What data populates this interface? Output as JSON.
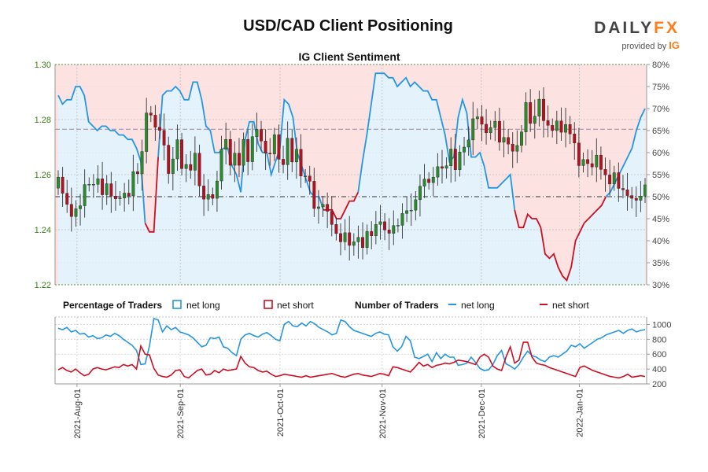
{
  "header": {
    "title": "USD/CAD Client Positioning",
    "subtitle": "IG Client Sentiment",
    "logo_brand_a": "DAILY",
    "logo_brand_b": "FX",
    "logo_provided": "provided by",
    "logo_ig": "IG"
  },
  "legend": {
    "pct_title": "Percentage of Traders",
    "pct_long": "net long",
    "pct_short": "net short",
    "num_title": "Number of Traders",
    "num_long": "net long",
    "num_short": "net short"
  },
  "colors": {
    "long_line": "#2596e0",
    "short_line": "#cc0f22",
    "long_fill": "#e4f2fb",
    "short_fill": "#fde2e2",
    "candle_up": "#2b8a2b",
    "candle_down": "#b8101f",
    "price_axis": "#3c7d16"
  },
  "chart_data": [
    {
      "type": "candlestick",
      "name": "price",
      "x_ticks": [
        "2021-Aug-01",
        "2021-Sep-01",
        "2021-Oct-01",
        "2021-Nov-01",
        "2021-Dec-01",
        "2022-Jan-01"
      ],
      "y_left_ticks": [
        "1.22",
        "1.24",
        "1.26",
        "1.28",
        "1.30"
      ],
      "y_left_range": [
        1.22,
        1.3
      ],
      "y_right_ticks": [
        "30%",
        "35%",
        "40%",
        "45%",
        "50%",
        "55%",
        "60%",
        "65%",
        "70%",
        "75%",
        "80%"
      ],
      "y_right_range": [
        30,
        80
      ],
      "reference_lines": {
        "pct_50": 50,
        "price_level": 1.2765
      },
      "close": [
        1.2591,
        1.2532,
        1.2492,
        1.2448,
        1.2476,
        1.2487,
        1.2564,
        1.2565,
        1.2565,
        1.2585,
        1.2527,
        1.2567,
        1.2522,
        1.2512,
        1.2515,
        1.2533,
        1.2523,
        1.2611,
        1.2603,
        1.2684,
        1.2824,
        1.2816,
        1.2772,
        1.2761,
        1.2707,
        1.2604,
        1.2657,
        1.2727,
        1.2622,
        1.2637,
        1.2616,
        1.2678,
        1.2559,
        1.2511,
        1.2528,
        1.2514,
        1.2577,
        1.2692,
        1.2728,
        1.2634,
        1.2678,
        1.2634,
        1.2728,
        1.2647,
        1.2738,
        1.2764,
        1.2722,
        1.2678,
        1.2675,
        1.2745,
        1.2656,
        1.2636,
        1.2732,
        1.2646,
        1.2692,
        1.2595,
        1.2595,
        1.2576,
        1.2477,
        1.2483,
        1.2492,
        1.2467,
        1.2419,
        1.2386,
        1.2356,
        1.2389,
        1.2343,
        1.2356,
        1.2372,
        1.2335,
        1.2394,
        1.2378,
        1.2419,
        1.2429,
        1.2399,
        1.2387,
        1.2415,
        1.2416,
        1.2459,
        1.2469,
        1.2471,
        1.2509,
        1.2558,
        1.2584,
        1.2571,
        1.2591,
        1.2629,
        1.2623,
        1.2632,
        1.2693,
        1.2618,
        1.2682,
        1.27,
        1.2726,
        1.2803,
        1.281,
        1.2783,
        1.2752,
        1.2771,
        1.2794,
        1.2718,
        1.2735,
        1.2711,
        1.2685,
        1.2706,
        1.2755,
        1.2862,
        1.2786,
        1.2812,
        1.2874,
        1.2796,
        1.2779,
        1.276,
        1.2795,
        1.2754,
        1.2782,
        1.2748,
        1.2715,
        1.2633,
        1.2655,
        1.264,
        1.2628,
        1.2671,
        1.2619,
        1.2599,
        1.2566,
        1.2607,
        1.255,
        1.2545,
        1.2524,
        1.2514,
        1.2507,
        1.2522,
        1.2563
      ],
      "price_line_samples": [
        [
          0,
          1.2615
        ],
        [
          10,
          1.2608
        ],
        [
          20,
          1.2622
        ],
        [
          30,
          1.2611
        ],
        [
          40,
          1.2578
        ],
        [
          50,
          1.2557
        ],
        [
          60,
          1.2548
        ]
      ]
    },
    {
      "type": "line",
      "name": "percentage-net-long",
      "series": [
        {
          "name": "net long",
          "values": [
            73,
            71,
            72,
            72,
            75,
            75,
            73,
            67,
            66,
            65,
            66,
            66,
            65,
            65,
            64,
            64,
            63,
            63,
            61,
            58,
            44,
            42,
            42,
            59,
            73,
            74,
            74,
            75,
            74,
            72,
            72,
            76,
            76,
            72,
            66,
            65,
            60,
            60,
            61,
            61,
            57,
            55,
            51,
            63,
            67,
            67,
            62,
            60,
            60,
            55,
            58,
            61,
            72,
            71,
            68,
            60,
            57,
            54,
            51,
            50,
            50,
            47,
            47,
            47,
            45,
            45,
            47,
            49,
            49,
            51,
            58,
            64,
            71,
            78,
            78,
            78,
            77,
            77,
            75,
            76,
            77,
            75,
            76,
            75,
            74,
            74,
            72,
            72,
            68,
            64,
            58,
            59,
            68,
            72,
            69,
            59,
            59,
            60,
            57,
            52,
            52,
            52,
            53,
            54,
            55,
            47,
            43,
            43,
            46,
            45,
            45,
            43,
            37,
            36,
            37,
            34,
            32,
            31,
            34,
            40,
            42,
            44,
            45,
            46,
            47,
            48,
            50,
            51,
            53,
            55,
            57,
            59,
            61,
            65,
            68,
            70
          ]
        },
        {
          "name": "net short",
          "values": [
            27,
            29,
            28,
            28,
            25,
            25,
            27,
            33,
            34,
            35,
            34,
            34,
            35,
            35,
            36,
            36,
            37,
            37,
            39,
            42,
            56,
            58,
            58,
            41,
            27,
            26,
            26,
            25,
            26,
            28,
            28,
            24,
            24,
            28,
            34,
            35,
            40,
            40,
            39,
            39,
            43,
            45,
            49,
            37,
            33,
            33,
            38,
            40,
            40,
            45,
            42,
            39,
            28,
            29,
            32,
            40,
            43,
            46,
            49,
            50,
            50,
            53,
            53,
            53,
            55,
            55,
            53,
            51,
            51,
            49,
            42,
            36,
            29,
            22,
            22,
            22,
            23,
            23,
            25,
            24,
            23,
            25,
            24,
            25,
            26,
            26,
            28,
            28,
            32,
            36,
            42,
            41,
            32,
            28,
            31,
            41,
            41,
            40,
            43,
            48,
            48,
            48,
            47,
            46,
            45,
            53,
            57,
            57,
            54,
            55,
            55,
            57,
            63,
            64,
            63,
            66,
            68,
            69,
            66,
            60,
            58,
            56,
            55,
            54,
            53,
            52,
            50,
            49,
            47,
            45,
            43,
            41,
            39,
            35,
            32,
            30
          ]
        }
      ]
    },
    {
      "type": "line",
      "name": "number-of-traders",
      "y_ticks": [
        "200",
        "400",
        "600",
        "800",
        "1000"
      ],
      "y_range": [
        200,
        1100
      ],
      "series": [
        {
          "name": "net long",
          "values": [
            950,
            930,
            960,
            900,
            920,
            870,
            880,
            830,
            850,
            810,
            820,
            860,
            840,
            880,
            850,
            800,
            760,
            720,
            650,
            460,
            470,
            710,
            1080,
            1060,
            900,
            980,
            930,
            960,
            900,
            880,
            860,
            820,
            760,
            700,
            720,
            820,
            810,
            830,
            700,
            680,
            620,
            580,
            800,
            860,
            880,
            850,
            830,
            870,
            890,
            850,
            800,
            780,
            1000,
            1040,
            980,
            970,
            1020,
            980,
            1040,
            1010,
            960,
            930,
            900,
            860,
            880,
            1060,
            1040,
            970,
            920,
            900,
            880,
            860,
            840,
            880,
            900,
            870,
            860,
            700,
            640,
            700,
            840,
            780,
            560,
            540,
            570,
            600,
            500,
            620,
            540,
            600,
            560,
            560,
            450,
            460,
            480,
            560,
            490,
            410,
            380,
            390,
            460,
            580,
            650,
            470,
            440,
            400,
            460,
            560,
            640,
            580,
            560,
            520,
            500,
            560,
            580,
            560,
            600,
            640,
            720,
            700,
            740,
            680,
            720,
            760,
            800,
            820,
            860,
            880,
            900,
            920,
            880,
            920,
            940,
            900,
            920,
            930
          ]
        },
        {
          "name": "net short",
          "values": [
            390,
            420,
            380,
            360,
            400,
            350,
            310,
            330,
            400,
            420,
            400,
            390,
            410,
            430,
            420,
            460,
            440,
            460,
            400,
            710,
            600,
            590,
            410,
            320,
            300,
            290,
            320,
            380,
            390,
            300,
            280,
            330,
            380,
            400,
            320,
            330,
            380,
            350,
            400,
            380,
            390,
            400,
            570,
            480,
            430,
            420,
            380,
            360,
            370,
            330,
            300,
            310,
            330,
            320,
            310,
            300,
            290,
            310,
            290,
            300,
            310,
            320,
            330,
            340,
            320,
            300,
            290,
            310,
            330,
            340,
            320,
            310,
            300,
            320,
            340,
            330,
            310,
            430,
            420,
            400,
            380,
            360,
            420,
            490,
            440,
            460,
            420,
            450,
            460,
            480,
            470,
            490,
            520,
            510,
            500,
            480,
            460,
            560,
            600,
            560,
            440,
            400,
            380,
            560,
            700,
            480,
            520,
            760,
            760,
            560,
            480,
            460,
            450,
            420,
            400,
            380,
            360,
            340,
            320,
            300,
            420,
            440,
            410,
            380,
            360,
            340,
            320,
            300,
            290,
            280,
            300,
            330,
            290,
            300,
            310,
            300
          ]
        }
      ]
    }
  ]
}
